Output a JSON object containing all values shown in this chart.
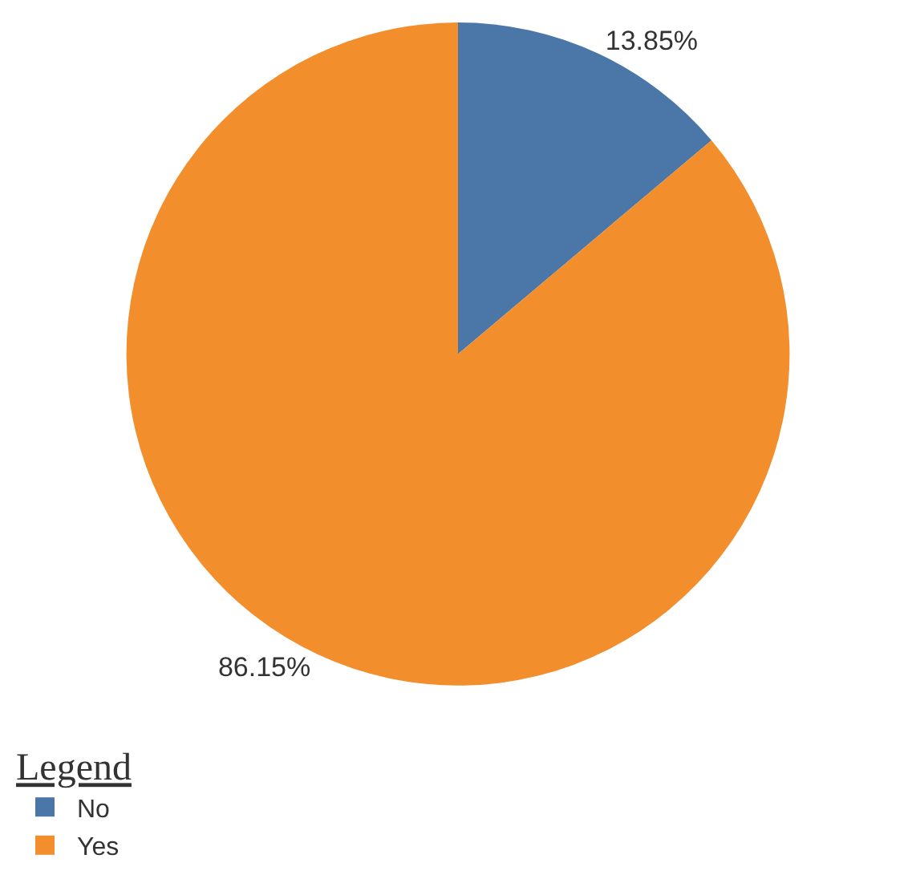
{
  "chart_data": {
    "type": "pie",
    "categories": [
      "No",
      "Yes"
    ],
    "values": [
      13.85,
      86.15
    ],
    "colors": [
      "#4a76a8",
      "#f28e2c"
    ],
    "value_labels": [
      "13.85%",
      "86.15%"
    ],
    "legend": "bottom left",
    "legend_title": "Legend"
  }
}
